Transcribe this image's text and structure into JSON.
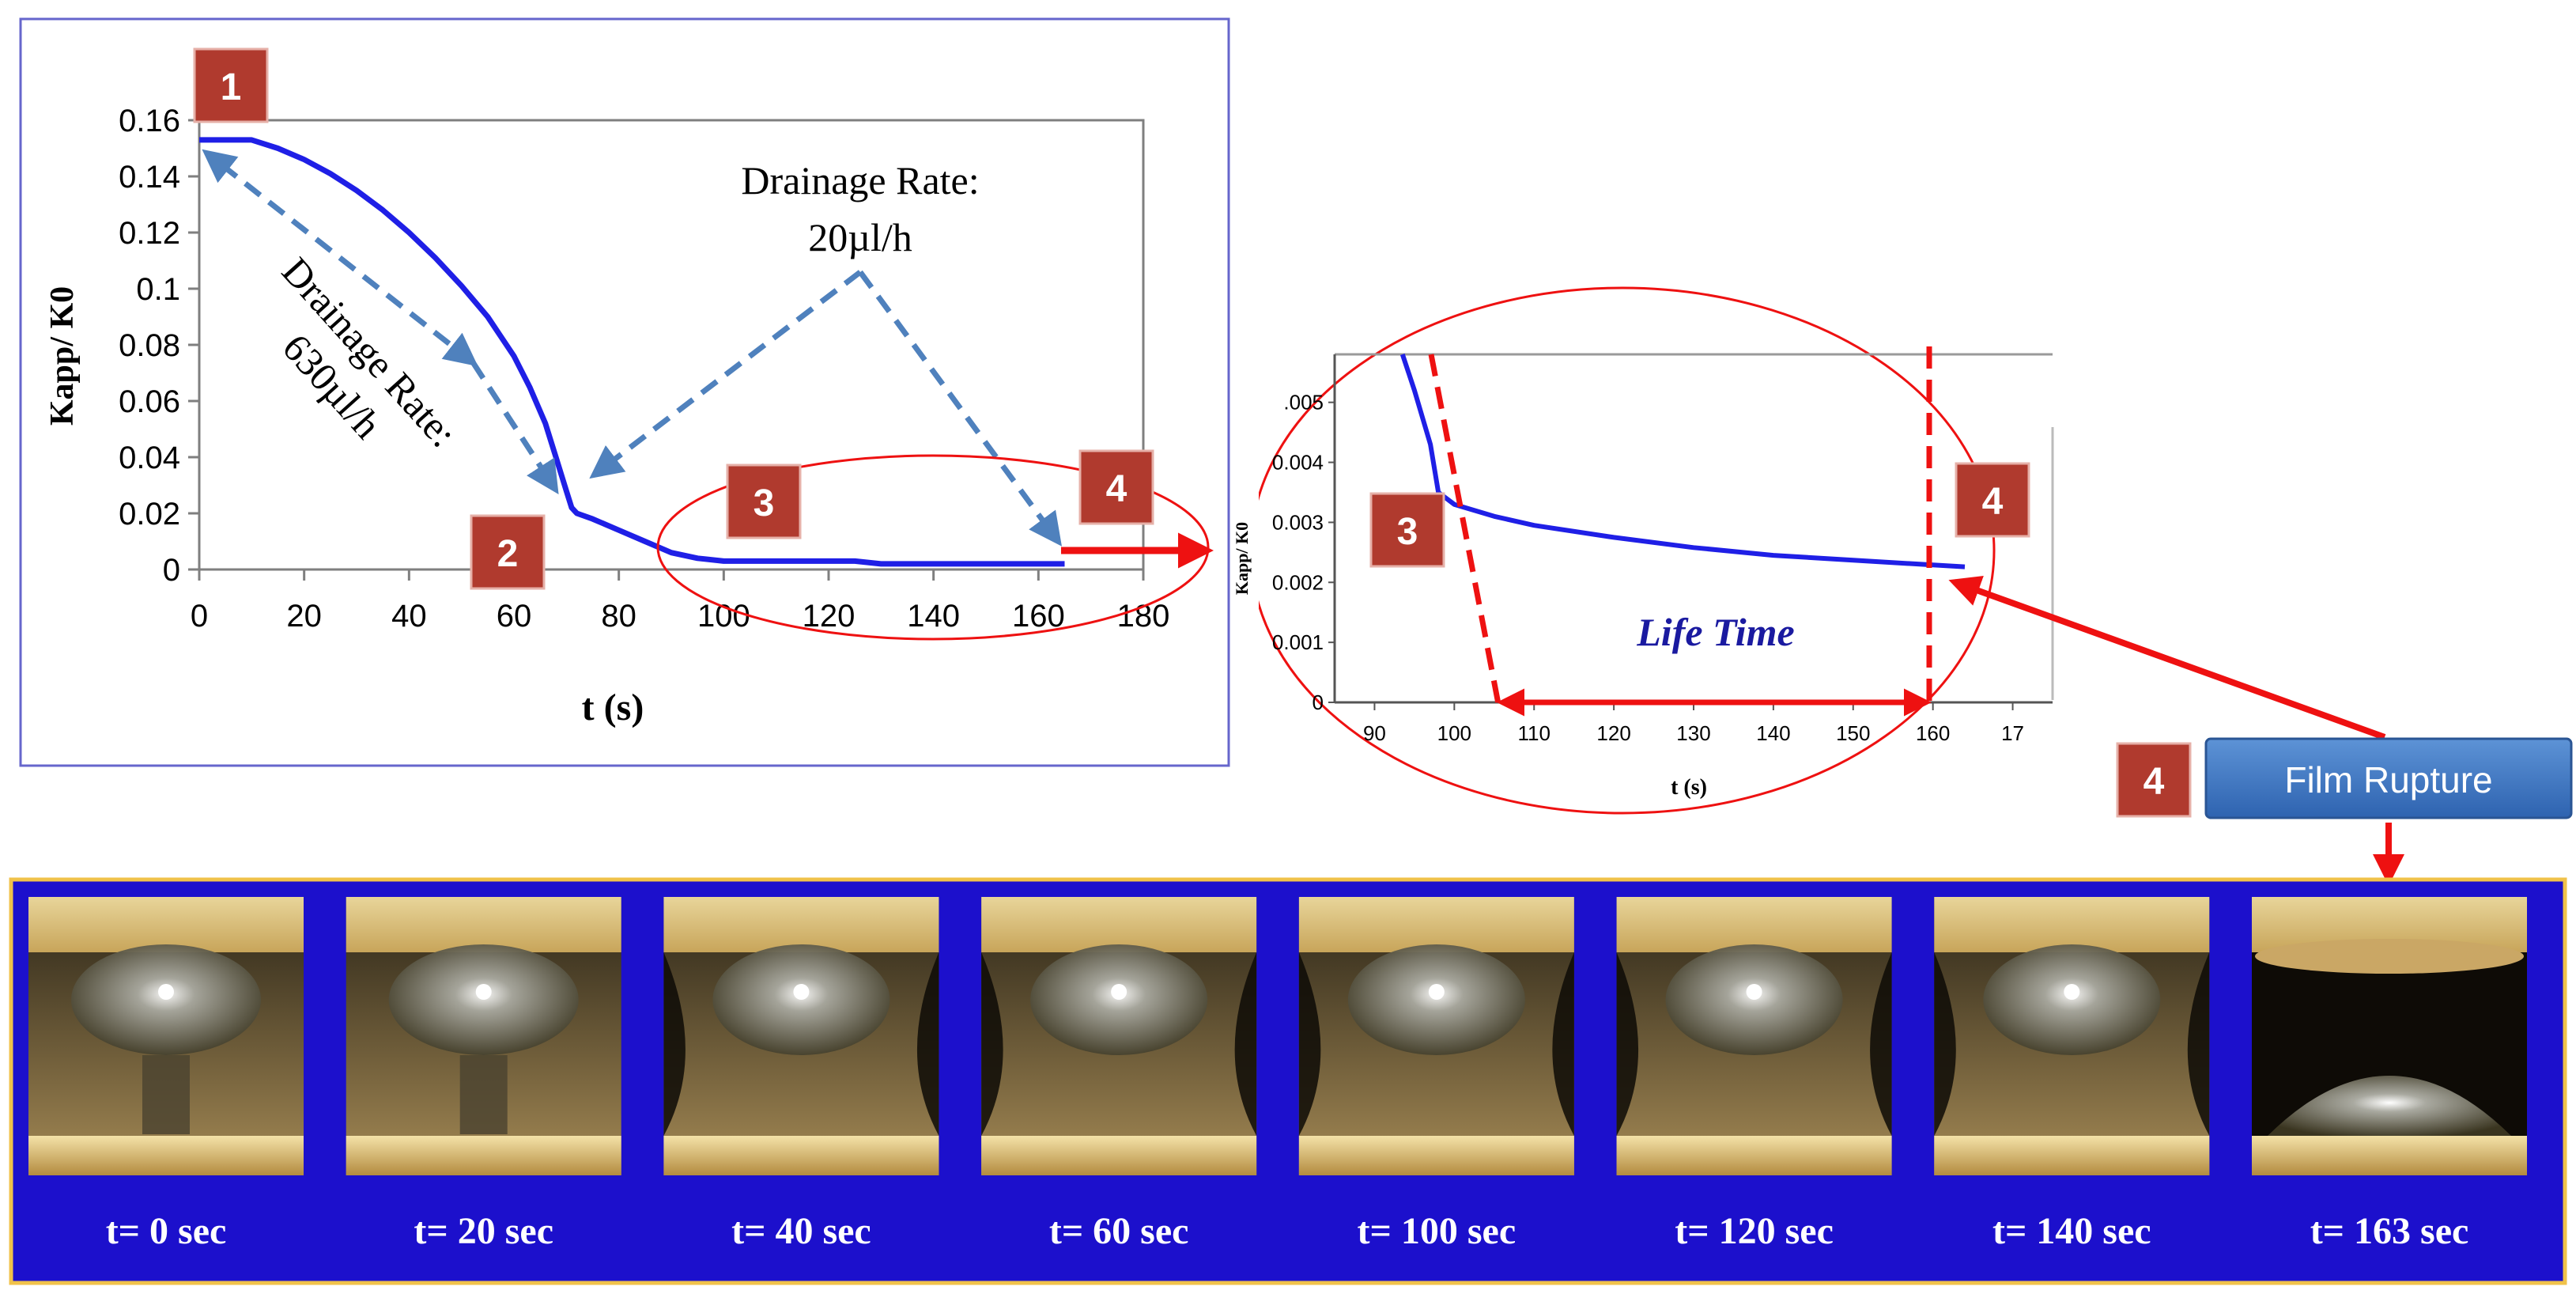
{
  "chart_data": [
    {
      "type": "line",
      "xlabel": "t (s)",
      "ylabel": "Kapp/ K0",
      "xlim": [
        0,
        180
      ],
      "ylim": [
        0,
        0.16
      ],
      "x_ticks": [
        "0",
        "20",
        "40",
        "60",
        "80",
        "100",
        "120",
        "140",
        "160",
        "180"
      ],
      "y_ticks": [
        "0",
        "0.02",
        "0.04",
        "0.06",
        "0.08",
        "0.1",
        "0.12",
        "0.14",
        "0.16"
      ],
      "grid": false,
      "series": [
        {
          "x": [
            0,
            2,
            5,
            10,
            15,
            20,
            25,
            30,
            35,
            40,
            45,
            50,
            55,
            60,
            63,
            66,
            68,
            70,
            71,
            72,
            75,
            80,
            85,
            90,
            95,
            100,
            110,
            120,
            125,
            130,
            140,
            150,
            160,
            165
          ],
          "y": [
            0.153,
            0.153,
            0.153,
            0.153,
            0.15,
            0.146,
            0.141,
            0.135,
            0.128,
            0.12,
            0.111,
            0.101,
            0.09,
            0.076,
            0.065,
            0.052,
            0.04,
            0.028,
            0.022,
            0.02,
            0.018,
            0.014,
            0.01,
            0.006,
            0.004,
            0.003,
            0.003,
            0.003,
            0.003,
            0.002,
            0.002,
            0.002,
            0.002,
            0.002
          ]
        }
      ],
      "color": "#1f1fe6"
    },
    {
      "type": "line",
      "xlabel": "t (s)",
      "ylabel": "Kapp/ K0",
      "xlim": [
        85,
        175
      ],
      "ylim": [
        0,
        0.0058
      ],
      "x_ticks": [
        "90",
        "100",
        "110",
        "120",
        "130",
        "140",
        "150",
        "160",
        "17"
      ],
      "y_ticks": [
        "0",
        "0.001",
        "0.002",
        "0.003",
        "0.004",
        ".005"
      ],
      "series": [
        {
          "x": [
            93.5,
            95,
            97,
            98,
            100,
            105,
            110,
            120,
            130,
            140,
            150,
            160,
            164
          ],
          "y": [
            0.0058,
            0.0052,
            0.0043,
            0.0035,
            0.0033,
            0.0031,
            0.00295,
            0.00275,
            0.00258,
            0.00245,
            0.00237,
            0.00229,
            0.00226
          ]
        }
      ],
      "color": "#1f1fe6"
    }
  ],
  "annotations": {
    "drainage_fast_line1": "Drainage Rate:",
    "drainage_fast_line2": "630µl/h",
    "drainage_slow_line1": "Drainage Rate:",
    "drainage_slow_line2": "20µl/h",
    "life_time": "Life Time",
    "film_rupture": "Film Rupture"
  },
  "markers": [
    "1",
    "2",
    "3",
    "4"
  ],
  "frames": {
    "labels": [
      "t= 0 sec",
      "t= 20 sec",
      "t= 40 sec",
      "t= 60 sec",
      "t= 100 sec",
      "t= 120 sec",
      "t= 140 sec",
      "t= 163 sec"
    ]
  },
  "colors": {
    "marker_box": "#b03a2e",
    "arrow_red": "#ee1111",
    "arrow_dashed": "#4f81bd",
    "curve": "#1f1fe6",
    "frames_band": "#1c10cc",
    "film_rupture_button": "#3c78c8"
  }
}
